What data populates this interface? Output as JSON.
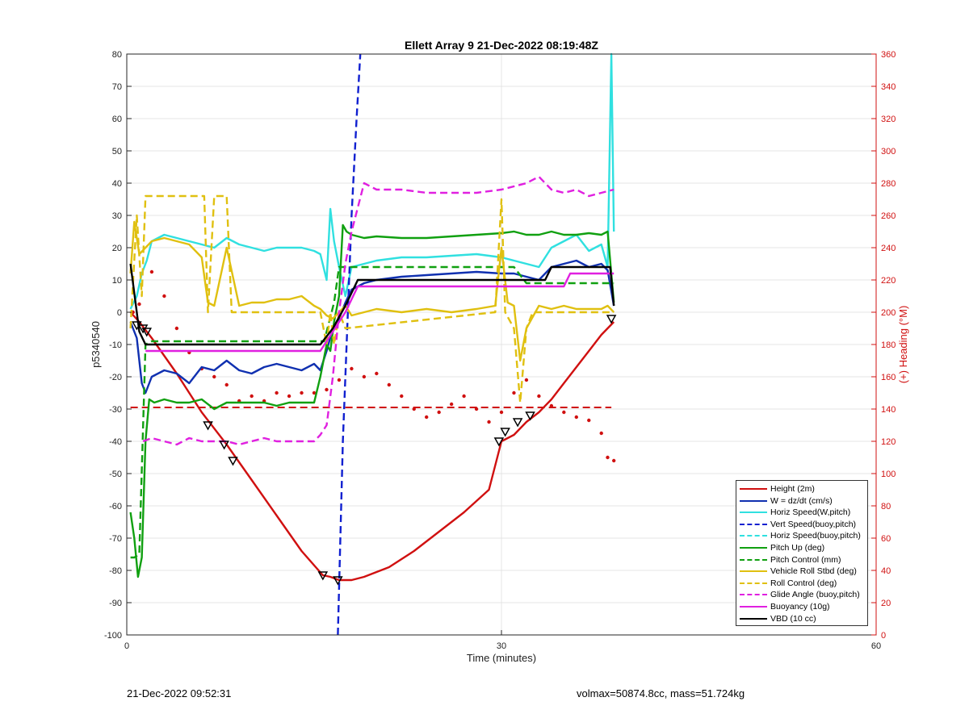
{
  "chart_data": {
    "type": "line",
    "title": "Ellett Array 9 21-Dec-2022 08:19:48Z",
    "xlabel": "Time (minutes)",
    "ylabel_left": "p5340540",
    "ylabel_right": "(+) Heading (°M)",
    "xlim": [
      0,
      60
    ],
    "ylim_left": [
      -100,
      80
    ],
    "ylim_right": [
      0,
      360
    ],
    "x_ticks": [
      "0",
      "30",
      "60"
    ],
    "y_ticks_left": [
      "80",
      "70",
      "60",
      "50",
      "40",
      "30",
      "20",
      "10",
      "0",
      "-10",
      "-20",
      "-30",
      "-40",
      "-50",
      "-60",
      "-70",
      "-80",
      "-90",
      "-100"
    ],
    "y_ticks_right": [
      "360",
      "340",
      "320",
      "300",
      "280",
      "260",
      "240",
      "220",
      "200",
      "180",
      "160",
      "140",
      "120",
      "100",
      "80",
      "60",
      "40",
      "20",
      "0"
    ],
    "grid": true,
    "legend_position": "bottom-right",
    "series": [
      {
        "name": "Height (2m)",
        "color": "#d01010",
        "style": "solid",
        "x": [
          0.3,
          1,
          2,
          4,
          6,
          8,
          10,
          12,
          14,
          15.7,
          16.3,
          17,
          18,
          19,
          21,
          23,
          25,
          27,
          29,
          30,
          31,
          32,
          33,
          34,
          35,
          36,
          37,
          38,
          39
        ],
        "y": [
          0,
          -3,
          -8,
          -19,
          -31,
          -41,
          -52,
          -63,
          -74,
          -81.5,
          -82,
          -83,
          -83,
          -82,
          -79,
          -74,
          -68,
          -62,
          -55,
          -40,
          -38,
          -34,
          -31,
          -27,
          -22,
          -17,
          -12,
          -7,
          -3
        ]
      },
      {
        "name": "W = dz/dt (cm/s)",
        "color": "#1030b0",
        "style": "solid",
        "x": [
          0.3,
          0.8,
          1.2,
          1.5,
          2,
          3,
          4,
          5,
          6,
          7,
          8,
          9,
          10,
          11,
          12,
          13,
          14,
          15,
          15.5,
          16,
          16.5,
          17,
          17.5,
          18,
          19,
          20,
          22,
          24,
          26,
          28,
          30,
          31,
          32,
          33,
          34,
          35,
          36,
          37,
          38,
          38.5,
          39
        ],
        "y": [
          -3,
          -8,
          -22,
          -25,
          -20,
          -18,
          -19,
          -22,
          -17,
          -18,
          -15,
          -18,
          -19,
          -17,
          -16,
          -17,
          -18,
          -16,
          -18,
          -12,
          -5,
          -2,
          3,
          7,
          9,
          10,
          11,
          11.5,
          12,
          12.5,
          12,
          12,
          11,
          10,
          14,
          15,
          16,
          14,
          15,
          13,
          2
        ]
      },
      {
        "name": "Horiz Speed(W,pitch)",
        "color": "#30e0e0",
        "style": "solid",
        "x": [
          0.3,
          0.8,
          1.2,
          1.6,
          2,
          3,
          4,
          5,
          6,
          7,
          8,
          9,
          10,
          11,
          12,
          13,
          14,
          15,
          15.5,
          16,
          16.3,
          16.6,
          17,
          17.5,
          18,
          19,
          20,
          22,
          24,
          26,
          28,
          30,
          31,
          32,
          33,
          34,
          35,
          36,
          37,
          38,
          38.5,
          38.8,
          39
        ],
        "y": [
          1,
          5,
          12,
          16,
          22,
          24,
          23,
          22,
          21,
          20,
          23,
          21,
          20,
          19,
          20,
          20,
          20,
          19,
          18,
          10,
          32,
          22,
          14,
          5,
          14,
          15,
          16,
          17,
          17,
          17.5,
          18,
          17,
          16,
          15,
          14,
          20,
          22,
          24,
          19,
          21,
          14,
          80,
          25
        ]
      },
      {
        "name": "Vert Speed(buoy,pitch)",
        "color": "#1020d0",
        "style": "dash",
        "x": [
          16.9,
          17.3,
          17.7,
          18.0,
          18.4,
          18.7
        ],
        "y": [
          -100,
          -40,
          0,
          30,
          60,
          80
        ]
      },
      {
        "name": "Horiz Speed(buoy,pitch)",
        "color": "#30e0e0",
        "style": "dash",
        "x": [],
        "y": []
      },
      {
        "name": "Pitch Up (deg)",
        "color": "#10a010",
        "style": "solid",
        "x": [
          0.3,
          0.6,
          0.9,
          1.2,
          1.5,
          1.8,
          2.2,
          3,
          4,
          5,
          6,
          7,
          8,
          9,
          10,
          11,
          12,
          13,
          14,
          15,
          15.5,
          16,
          16.3,
          16.6,
          17,
          17.3,
          17.6,
          18,
          19,
          20,
          22,
          24,
          26,
          28,
          30,
          31,
          32,
          33,
          34,
          35,
          36,
          37,
          38,
          38.5,
          39
        ],
        "y": [
          -62,
          -70,
          -82,
          -76,
          -40,
          -27,
          -28,
          -27,
          -28,
          -28,
          -27,
          -30,
          -28,
          -28,
          -28,
          -28,
          -29,
          -28,
          -28,
          -28,
          -20,
          -10,
          -12,
          -3,
          5,
          27,
          25,
          24,
          23,
          23.5,
          23,
          23,
          23.5,
          24,
          24.5,
          25,
          24,
          24,
          25,
          24,
          24,
          24.5,
          24,
          25,
          3
        ]
      },
      {
        "name": "Pitch Control (mm)",
        "color": "#10a010",
        "style": "dash",
        "x": [
          0.3,
          0.6,
          1.0,
          1.5,
          2,
          5,
          10,
          15,
          15.8,
          16.2,
          16.6,
          17,
          17.4,
          30,
          31,
          32,
          33,
          39
        ],
        "y": [
          -76,
          -76,
          -75,
          -10,
          -9,
          -9,
          -9,
          -9,
          -9,
          -3,
          3,
          14,
          14,
          14,
          14,
          9,
          9,
          9
        ]
      },
      {
        "name": "Vehicle Roll Stbd (deg)",
        "color": "#e0c010",
        "style": "solid",
        "x": [
          0.3,
          0.6,
          1,
          1.5,
          2,
          3,
          4,
          5,
          6,
          6.5,
          7,
          8,
          9,
          10,
          11,
          12,
          13,
          14,
          15,
          15.5,
          16,
          16.5,
          17,
          17.5,
          18,
          19,
          20,
          22,
          24,
          26,
          28,
          29.5,
          30,
          30.5,
          31,
          31.5,
          32,
          33,
          34,
          35,
          36,
          37,
          38,
          38.5,
          39
        ],
        "y": [
          12,
          28,
          18,
          20,
          22,
          23,
          22,
          21,
          17,
          3,
          2,
          20,
          2,
          3,
          3,
          4,
          4,
          5,
          2,
          1,
          -1,
          -2,
          0,
          2,
          -1,
          0,
          1,
          0,
          1,
          0,
          1,
          2,
          20,
          3,
          2,
          -15,
          -5,
          2,
          1,
          2,
          1,
          1,
          1,
          2,
          0
        ]
      },
      {
        "name": "Roll Control (deg)",
        "color": "#e0c010",
        "style": "dash",
        "x": [
          0.3,
          0.8,
          1.2,
          1.5,
          6.2,
          6.5,
          7,
          8,
          8.4,
          9,
          15.5,
          16,
          16.3,
          16.6,
          17,
          17.5,
          29.5,
          30,
          30.3,
          31,
          31.5,
          32,
          32.5,
          33,
          39
        ],
        "y": [
          -5,
          30,
          5,
          36,
          36,
          0,
          36,
          36,
          0,
          0,
          0,
          -10,
          0,
          -10,
          0,
          -5,
          0,
          35,
          0,
          -5,
          -28,
          -5,
          0,
          0,
          0
        ]
      },
      {
        "name": "Glide Angle (buoy,pitch)",
        "color": "#e020e0",
        "style": "dash",
        "x": [
          1.3,
          2,
          3,
          4,
          5,
          6,
          7,
          8,
          9,
          10,
          11,
          12,
          13,
          14,
          15,
          15.5,
          16,
          16.5,
          17,
          17.5,
          18,
          19,
          20,
          22,
          24,
          26,
          28,
          30,
          31,
          32,
          33,
          34,
          35,
          36,
          37,
          38,
          39
        ],
        "y": [
          -40,
          -39,
          -40,
          -41,
          -39,
          -40,
          -40,
          -40,
          -41,
          -40,
          -39,
          -40,
          -40,
          -40,
          -40,
          -38,
          -35,
          -20,
          0,
          15,
          25,
          40,
          38,
          38,
          37,
          37,
          37,
          38,
          39,
          40,
          42,
          38,
          37,
          38,
          36,
          37,
          38
        ]
      },
      {
        "name": "Buoyancy (10g)",
        "color": "#e020e0",
        "style": "solid",
        "x": [
          1.5,
          15.5,
          17.5,
          18.5,
          35,
          35.5,
          39
        ],
        "y": [
          -12,
          -12,
          0,
          8,
          8,
          12,
          12
        ]
      },
      {
        "name": "VBD (10 cc)",
        "color": "#000000",
        "style": "solid",
        "x": [
          0.3,
          1,
          1.5,
          15.5,
          16.5,
          17.5,
          18.5,
          33.5,
          34,
          38.7,
          39
        ],
        "y": [
          15,
          -6,
          -10,
          -10,
          -5,
          2,
          10,
          10,
          14,
          14,
          2
        ]
      }
    ],
    "heading_series": {
      "name": "Heading",
      "color": "#d01010",
      "style": "dotted",
      "axis": "right",
      "x": [
        0.5,
        1,
        2,
        3,
        4,
        5,
        6,
        7,
        8,
        9,
        10,
        11,
        12,
        13,
        14,
        15,
        16,
        17,
        18,
        19,
        20,
        21,
        22,
        23,
        24,
        25,
        26,
        27,
        28,
        29,
        30,
        31,
        32,
        33,
        34,
        35,
        36,
        37,
        38,
        38.5,
        39
      ],
      "y": [
        200,
        205,
        225,
        210,
        190,
        175,
        165,
        160,
        155,
        145,
        148,
        145,
        150,
        148,
        150,
        150,
        152,
        158,
        165,
        160,
        162,
        155,
        148,
        140,
        135,
        138,
        143,
        148,
        140,
        132,
        138,
        150,
        158,
        148,
        142,
        138,
        135,
        133,
        125,
        110,
        108
      ]
    },
    "heading_reference": {
      "axis": "right",
      "value": 141,
      "x": [
        0.3,
        38.8
      ],
      "color": "#d01010",
      "style": "dash"
    },
    "markers": {
      "axis": "left",
      "x": [
        0.8,
        1.3,
        1.6,
        6.5,
        7.8,
        8.5,
        15.7,
        16.9,
        29.8,
        30.3,
        31.3,
        32.3,
        38.8
      ],
      "y": [
        -4,
        -5,
        -6,
        -35,
        -41,
        -46,
        -81.5,
        -83,
        -40,
        -37,
        -34,
        -32,
        -2
      ]
    }
  },
  "footer": {
    "timestamp": "21-Dec-2022 09:52:31",
    "summary": "volmax=50874.8cc, mass=51.724kg"
  }
}
